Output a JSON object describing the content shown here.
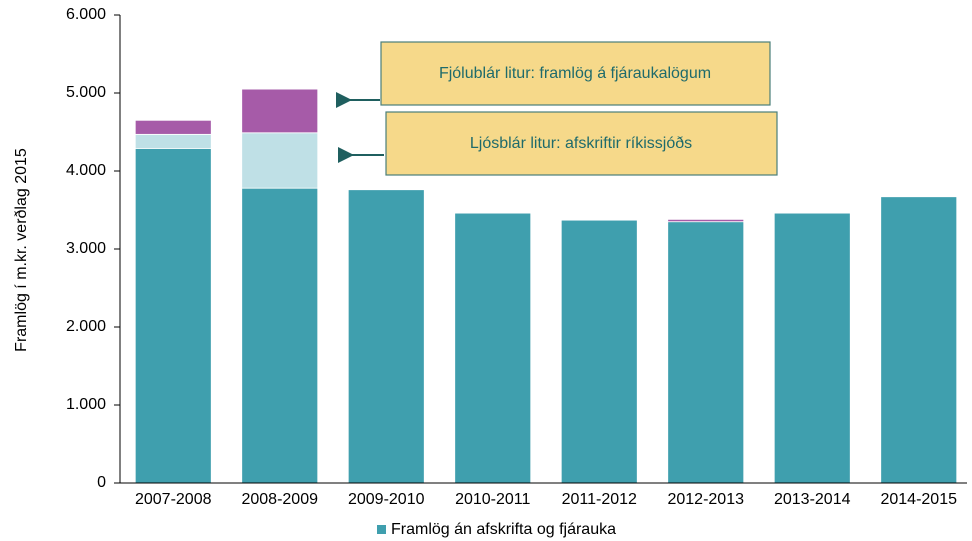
{
  "chart_data": {
    "type": "stacked_bar",
    "y_label": "Framlög í m.kr. verðlag 2015",
    "categories": [
      "2007-2008",
      "2008-2009",
      "2009-2010",
      "2010-2011",
      "2011-2012",
      "2012-2013",
      "2013-2014",
      "2014-2015"
    ],
    "series": [
      {
        "name": "Framlög án afskrifta og fjárauka",
        "color": "#3f9fae",
        "values": [
          4290,
          3780,
          3760,
          3460,
          3370,
          3350,
          3460,
          3670
        ]
      },
      {
        "color": "#bfe0e6",
        "values": [
          180,
          710,
          0,
          0,
          0,
          0,
          0,
          0
        ]
      },
      {
        "color": "#a65ba8",
        "values": [
          180,
          560,
          0,
          0,
          0,
          30,
          0,
          0
        ]
      }
    ],
    "ylim": [
      0,
      6000
    ],
    "yticks": [
      0,
      {
        "value": 1000,
        "label": "1.000"
      },
      {
        "value": 2000,
        "label": "2.000"
      },
      {
        "value": 3000,
        "label": "3.000"
      },
      {
        "value": 4000,
        "label": "4.000"
      },
      {
        "value": 5000,
        "label": "5.000"
      },
      {
        "value": 6000,
        "label": "6.000"
      }
    ],
    "annotations": [
      "Fjólublár litur: framlög á fjáraukalögum",
      "Ljósblár litur: afskriftir ríkissjóðs"
    ]
  }
}
